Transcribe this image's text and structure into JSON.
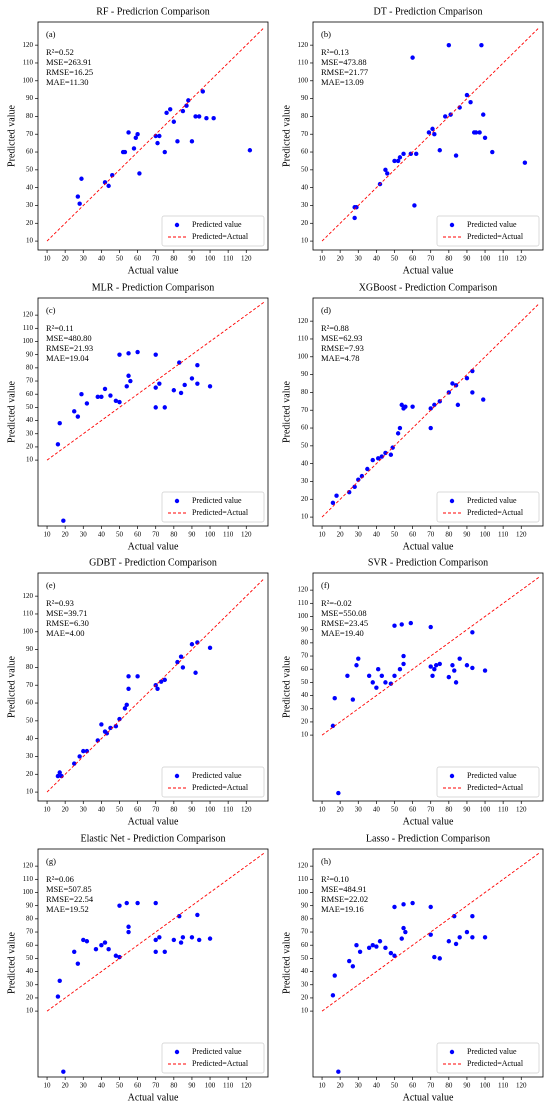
{
  "chart_data": [
    {
      "type": "scatter",
      "title": "RF - Predicrion Comparison",
      "x_label": "Actual value",
      "y_label": "Predicted value",
      "annotations": [
        "(a)",
        "R²=0.52",
        "MSE=263.91",
        "RMSE=16.25",
        "MAE=11.30"
      ],
      "xlim": [
        5,
        132
      ],
      "ylim": [
        5,
        133
      ],
      "xticks": [
        10,
        20,
        30,
        40,
        50,
        60,
        70,
        80,
        90,
        100,
        110,
        120
      ],
      "yticks": [
        10,
        20,
        30,
        40,
        50,
        60,
        70,
        80,
        90,
        100,
        110,
        120
      ],
      "legend": "lower right",
      "series": [
        {
          "name": "Predicted value",
          "color": "#0000ff",
          "x": [
            27,
            28,
            29,
            42,
            44,
            46,
            52,
            53,
            55,
            58,
            59,
            60,
            61,
            70,
            71,
            72,
            75,
            76,
            78,
            80,
            82,
            85,
            87,
            88,
            90,
            92,
            94,
            96,
            98,
            102,
            122
          ],
          "values": [
            35,
            31,
            45,
            43,
            41,
            47,
            60,
            60,
            71,
            62,
            68,
            70,
            48,
            69,
            65,
            69,
            60,
            82,
            84,
            77,
            66,
            83,
            86,
            89,
            66,
            80,
            80,
            94,
            79,
            79,
            61
          ]
        },
        {
          "name": "Predicted=Actual",
          "color": "#ff0000",
          "style": "dashed",
          "x": [
            10,
            130
          ],
          "values": [
            10,
            130
          ]
        }
      ]
    },
    {
      "type": "scatter",
      "title": "DT - Prediction Cmparison",
      "x_label": "Actual value",
      "y_label": "Predicted value",
      "annotations": [
        "(b)",
        "R²=0.13",
        "MSE=473.88",
        "RMSE=21.77",
        "MAE=13.09"
      ],
      "xlim": [
        5,
        132
      ],
      "ylim": [
        5,
        133
      ],
      "xticks": [
        10,
        20,
        30,
        40,
        50,
        60,
        70,
        80,
        90,
        100,
        110,
        120
      ],
      "yticks": [
        10,
        20,
        30,
        40,
        50,
        60,
        70,
        80,
        90,
        100,
        110,
        120
      ],
      "legend": "lower right",
      "series": [
        {
          "name": "Predicted value",
          "color": "#0000ff",
          "x": [
            28,
            28,
            29,
            42,
            45,
            46,
            50,
            52,
            53,
            55,
            59,
            60,
            61,
            62,
            69,
            71,
            72,
            75,
            78,
            80,
            81,
            84,
            86,
            90,
            92,
            94,
            95,
            97,
            98,
            99,
            100,
            104,
            122
          ],
          "values": [
            23,
            29,
            29,
            42,
            50,
            48,
            55,
            55,
            57,
            59,
            59,
            113,
            30,
            59,
            71,
            73,
            70,
            61,
            80,
            120,
            81,
            58,
            85,
            92,
            88,
            71,
            71,
            71,
            120,
            81,
            68,
            60,
            54
          ]
        },
        {
          "name": "Predicted=Actual",
          "color": "#ff0000",
          "style": "dashed",
          "x": [
            10,
            130
          ],
          "values": [
            10,
            130
          ]
        }
      ]
    },
    {
      "type": "scatter",
      "title": "MLR - Prediction Comparison",
      "x_label": "Actual value",
      "y_label": "Predicted value",
      "annotations": [
        "(c)",
        "R²=0.11",
        "MSE=480.80",
        "RMSE=21.93",
        "MAE=19.04"
      ],
      "xlim": [
        5,
        132
      ],
      "ylim": [
        -40,
        133
      ],
      "xticks": [
        10,
        20,
        30,
        40,
        50,
        60,
        70,
        80,
        90,
        100,
        110,
        120
      ],
      "yticks": [
        10,
        20,
        30,
        40,
        50,
        60,
        70,
        80,
        90,
        100,
        110,
        120
      ],
      "legend": "lower right",
      "series": [
        {
          "name": "Predicted value",
          "color": "#0000ff",
          "x": [
            17,
            16,
            19,
            25,
            27,
            29,
            32,
            38,
            40,
            42,
            45,
            48,
            50,
            50,
            54,
            55,
            55,
            56,
            60,
            70,
            70,
            70,
            72,
            75,
            80,
            83,
            84,
            86,
            90,
            93,
            93,
            100
          ],
          "values": [
            38,
            22,
            -36,
            47,
            43,
            60,
            53,
            58,
            58,
            64,
            59,
            55,
            54,
            90,
            66,
            91,
            74,
            70,
            92,
            90,
            65,
            50,
            68,
            50,
            63,
            84,
            61,
            67,
            72,
            82,
            68,
            66
          ]
        },
        {
          "name": "Predicted=Actual",
          "color": "#ff0000",
          "style": "dashed",
          "x": [
            10,
            130
          ],
          "values": [
            10,
            130
          ]
        }
      ]
    },
    {
      "type": "scatter",
      "title": "XGBoost - Prediction Comparison",
      "x_label": "Actual value",
      "y_label": "Predicted value",
      "annotations": [
        "(d)",
        "R²=0.88",
        "MSE=62.93",
        "RMSE=7.93",
        "MAE=4.78"
      ],
      "xlim": [
        5,
        132
      ],
      "ylim": [
        5,
        133
      ],
      "xticks": [
        10,
        20,
        30,
        40,
        50,
        60,
        70,
        80,
        90,
        100,
        110,
        120
      ],
      "yticks": [
        10,
        20,
        30,
        40,
        50,
        60,
        70,
        80,
        90,
        100,
        110,
        120
      ],
      "legend": "lower right",
      "series": [
        {
          "name": "Predicted value",
          "color": "#0000ff",
          "x": [
            16,
            18,
            25,
            28,
            30,
            32,
            35,
            38,
            41,
            43,
            45,
            48,
            49,
            52,
            53,
            54,
            55,
            56,
            60,
            70,
            70,
            72,
            75,
            80,
            82,
            84,
            85,
            90,
            93,
            93,
            99
          ],
          "values": [
            18,
            22,
            24,
            27,
            31,
            33,
            37,
            42,
            43,
            44,
            46,
            45,
            49,
            57,
            60,
            73,
            71,
            72,
            72,
            60,
            71,
            73,
            75,
            80,
            85,
            84,
            73,
            88,
            92,
            80,
            76
          ]
        },
        {
          "name": "Predicted=Actual",
          "color": "#ff0000",
          "style": "dashed",
          "x": [
            10,
            130
          ],
          "values": [
            10,
            130
          ]
        }
      ]
    },
    {
      "type": "scatter",
      "title": "GDBT - Prediction Comparison",
      "x_label": "Actual value",
      "y_label": "Predicted value",
      "annotations": [
        "(e)",
        "R²=0.93",
        "MSE=39.71",
        "RMSE=6.30",
        "MAE=4.00"
      ],
      "xlim": [
        5,
        132
      ],
      "ylim": [
        5,
        133
      ],
      "xticks": [
        10,
        20,
        30,
        40,
        50,
        60,
        70,
        80,
        90,
        100,
        110,
        120
      ],
      "yticks": [
        10,
        20,
        30,
        40,
        50,
        60,
        70,
        80,
        90,
        100,
        110,
        120
      ],
      "legend": "lower right",
      "series": [
        {
          "name": "Predicted value",
          "color": "#0000ff",
          "x": [
            16,
            17,
            18,
            25,
            28,
            30,
            32,
            38,
            40,
            42,
            43,
            45,
            48,
            50,
            53,
            54,
            55,
            55,
            60,
            70,
            71,
            73,
            75,
            82,
            84,
            85,
            90,
            92,
            93,
            100
          ],
          "values": [
            19,
            21,
            19,
            26,
            30,
            33,
            33,
            39,
            48,
            44,
            43,
            46,
            47,
            51,
            57,
            59,
            75,
            68,
            75,
            70,
            68,
            72,
            73,
            83,
            86,
            80,
            93,
            77,
            94,
            91
          ]
        },
        {
          "name": "Predicted=Actual",
          "color": "#ff0000",
          "style": "dashed",
          "x": [
            10,
            130
          ],
          "values": [
            10,
            130
          ]
        }
      ]
    },
    {
      "type": "scatter",
      "title": "SVR - Prediction Comparison",
      "x_label": "Actual value",
      "y_label": "Predicted value",
      "annotations": [
        "(f)",
        "R²=-0.02",
        "MSE=550.08",
        "RMSE=23.45",
        "MAE=19.40"
      ],
      "xlim": [
        5,
        132
      ],
      "ylim": [
        -40,
        133
      ],
      "xticks": [
        10,
        20,
        30,
        40,
        50,
        60,
        70,
        80,
        90,
        100,
        110,
        120
      ],
      "yticks": [
        10,
        20,
        30,
        40,
        50,
        60,
        70,
        80,
        90,
        100,
        110,
        120
      ],
      "legend": "lower right",
      "series": [
        {
          "name": "Predicted value",
          "color": "#0000ff",
          "x": [
            16,
            17,
            19,
            24,
            27,
            29,
            30,
            36,
            38,
            40,
            41,
            43,
            45,
            48,
            50,
            50,
            53,
            54,
            55,
            55,
            59,
            70,
            70,
            71,
            72,
            73,
            75,
            80,
            82,
            83,
            84,
            86,
            90,
            93,
            93,
            100
          ],
          "values": [
            17,
            38,
            -34,
            55,
            37,
            63,
            68,
            55,
            50,
            46,
            60,
            55,
            50,
            49,
            93,
            55,
            60,
            94,
            64,
            70,
            95,
            92,
            62,
            55,
            60,
            63,
            64,
            54,
            63,
            59,
            50,
            68,
            63,
            88,
            61,
            59
          ]
        },
        {
          "name": "Predicted=Actual",
          "color": "#ff0000",
          "style": "dashed",
          "x": [
            10,
            130
          ],
          "values": [
            10,
            130
          ]
        }
      ]
    },
    {
      "type": "scatter",
      "title": "Elastic Net - Prediction Comparison",
      "x_label": "Actual value",
      "y_label": "Predicted value",
      "annotations": [
        "(g)",
        "R²=0.06",
        "MSE=507.85",
        "RMSE=22.54",
        "MAE=19.52"
      ],
      "xlim": [
        5,
        132
      ],
      "ylim": [
        -40,
        133
      ],
      "xticks": [
        10,
        20,
        30,
        40,
        50,
        60,
        70,
        80,
        90,
        100,
        110,
        120
      ],
      "yticks": [
        10,
        20,
        30,
        40,
        50,
        60,
        70,
        80,
        90,
        100,
        110,
        120
      ],
      "legend": "lower right",
      "series": [
        {
          "name": "Predicted value",
          "color": "#0000ff",
          "x": [
            16,
            17,
            19,
            25,
            27,
            30,
            32,
            37,
            40,
            42,
            44,
            48,
            50,
            50,
            54,
            55,
            55,
            60,
            70,
            70,
            70,
            72,
            75,
            80,
            83,
            84,
            85,
            90,
            93,
            94,
            100
          ],
          "values": [
            21,
            33,
            -36,
            55,
            46,
            64,
            63,
            57,
            60,
            62,
            57,
            52,
            51,
            90,
            92,
            74,
            70,
            92,
            92,
            64,
            55,
            66,
            55,
            64,
            82,
            62,
            66,
            66,
            83,
            64,
            65
          ]
        },
        {
          "name": "Predicted=Actual",
          "color": "#ff0000",
          "style": "dashed",
          "x": [
            10,
            130
          ],
          "values": [
            10,
            130
          ]
        }
      ]
    },
    {
      "type": "scatter",
      "title": "Lasso - Prediction Comparison",
      "x_label": "Actual value",
      "y_label": "Predicted value",
      "annotations": [
        "(h)",
        "R²=0.10",
        "MSE=484.91",
        "RMSE=22.02",
        "MAE=19.16"
      ],
      "xlim": [
        5,
        132
      ],
      "ylim": [
        -40,
        133
      ],
      "xticks": [
        10,
        20,
        30,
        40,
        50,
        60,
        70,
        80,
        90,
        100,
        110,
        120
      ],
      "yticks": [
        10,
        20,
        30,
        40,
        50,
        60,
        70,
        80,
        90,
        100,
        110,
        120
      ],
      "legend": "lower right",
      "series": [
        {
          "name": "Predicted value",
          "color": "#0000ff",
          "x": [
            16,
            17,
            19,
            25,
            27,
            29,
            31,
            36,
            38,
            40,
            42,
            45,
            48,
            50,
            50,
            54,
            55,
            55,
            56,
            60,
            70,
            70,
            72,
            75,
            80,
            83,
            84,
            86,
            90,
            93,
            93,
            100
          ],
          "values": [
            22,
            37,
            -36,
            48,
            44,
            60,
            55,
            58,
            60,
            59,
            63,
            58,
            54,
            52,
            89,
            65,
            91,
            73,
            70,
            92,
            89,
            68,
            51,
            50,
            63,
            82,
            61,
            66,
            70,
            82,
            66,
            66
          ]
        },
        {
          "name": "Predicted=Actual",
          "color": "#ff0000",
          "style": "dashed",
          "x": [
            10,
            130
          ],
          "values": [
            10,
            130
          ]
        }
      ]
    }
  ]
}
